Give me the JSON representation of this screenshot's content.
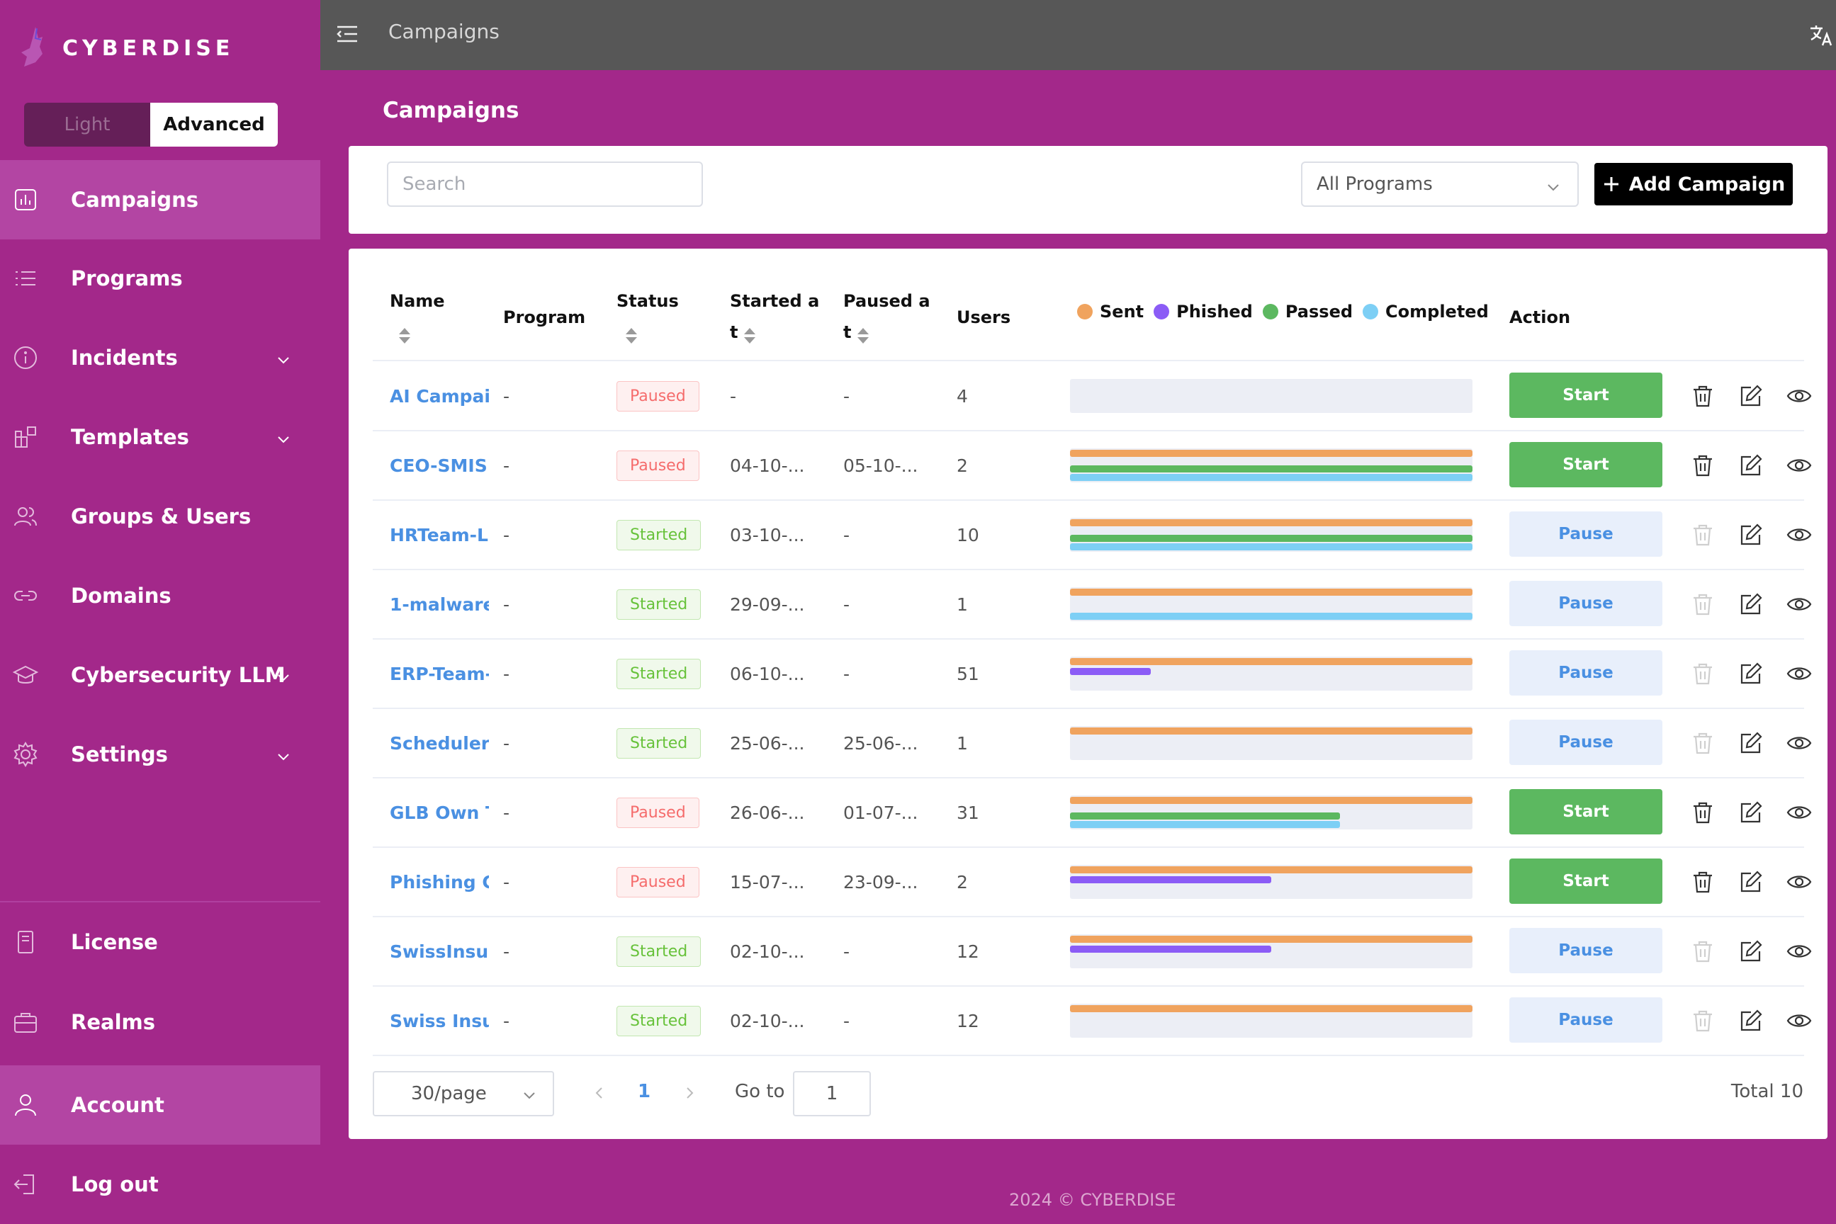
{
  "brand": {
    "name": "CYBERDISE"
  },
  "mode_toggle": {
    "light": "Light",
    "advanced": "Advanced",
    "selected": "Advanced"
  },
  "sidebar": {
    "items": [
      {
        "label": "Campaigns",
        "icon": "chart-icon",
        "active": true
      },
      {
        "label": "Programs",
        "icon": "list-icon"
      },
      {
        "label": "Incidents",
        "icon": "info-icon",
        "expandable": true
      },
      {
        "label": "Templates",
        "icon": "templates-icon",
        "expandable": true
      },
      {
        "label": "Groups & Users",
        "icon": "users-icon"
      },
      {
        "label": "Domains",
        "icon": "link-icon"
      },
      {
        "label": "Cybersecurity LLM",
        "icon": "graduation-cap-icon",
        "expandable": true
      },
      {
        "label": "Settings",
        "icon": "gear-icon",
        "expandable": true
      }
    ],
    "bottom": [
      {
        "label": "License",
        "icon": "document-icon"
      },
      {
        "label": "Realms",
        "icon": "briefcase-icon"
      },
      {
        "label": "Account",
        "icon": "user-icon",
        "active": true
      },
      {
        "label": "Log out",
        "icon": "logout-icon"
      }
    ]
  },
  "topbar": {
    "breadcrumb": "Campaigns"
  },
  "page": {
    "title": "Campaigns"
  },
  "filters": {
    "search_placeholder": "Search",
    "program_select": "All Programs",
    "add_button": "Add Campaign"
  },
  "table": {
    "headers": {
      "name": "Name",
      "program": "Program",
      "status": "Status",
      "started": "Started a t",
      "paused": "Paused a t",
      "users": "Users",
      "action": "Action"
    },
    "started_parts": [
      "Started a",
      "t"
    ],
    "paused_parts": [
      "Paused a",
      "t"
    ],
    "legend": [
      {
        "label": "Sent",
        "color": "#f0a35e"
      },
      {
        "label": "Phished",
        "color": "#8b5cf6"
      },
      {
        "label": "Passed",
        "color": "#5cb860"
      },
      {
        "label": "Completed",
        "color": "#7dcff5"
      }
    ],
    "rows": [
      {
        "name": "AI Campaig",
        "program": "-",
        "status": "Paused",
        "started": "-",
        "paused": "-",
        "users": "4",
        "sent": 0,
        "phished": 0,
        "passed": 0,
        "completed": 0,
        "action": "Start"
      },
      {
        "name": "CEO-SMISH",
        "program": "-",
        "status": "Paused",
        "started": "04-10-...",
        "paused": "05-10-...",
        "users": "2",
        "sent": 1,
        "phished": 0,
        "passed": 1,
        "completed": 1,
        "action": "Start"
      },
      {
        "name": "HRTeam-LI",
        "program": "-",
        "status": "Started",
        "started": "03-10-...",
        "paused": "-",
        "users": "10",
        "sent": 1,
        "phished": 0,
        "passed": 1,
        "completed": 1,
        "action": "Pause"
      },
      {
        "name": "1-malware",
        "program": "-",
        "status": "Started",
        "started": "29-09-...",
        "paused": "-",
        "users": "1",
        "sent": 1,
        "phished": 0,
        "passed": 0,
        "completed": 1,
        "action": "Pause"
      },
      {
        "name": "ERP-Team-",
        "program": "-",
        "status": "Started",
        "started": "06-10-...",
        "paused": "-",
        "users": "51",
        "sent": 1,
        "phished": 0.2,
        "passed": 0,
        "completed": 0,
        "action": "Pause"
      },
      {
        "name": "Scheduler",
        "program": "-",
        "status": "Started",
        "started": "25-06-...",
        "paused": "25-06-...",
        "users": "1",
        "sent": 1,
        "phished": 0,
        "passed": 0,
        "completed": 0,
        "action": "Pause"
      },
      {
        "name": "GLB Own Tr",
        "program": "-",
        "status": "Paused",
        "started": "26-06-...",
        "paused": "01-07-...",
        "users": "31",
        "sent": 1,
        "phished": 0,
        "passed": 0.67,
        "completed": 0.67,
        "action": "Start"
      },
      {
        "name": "Phishing Ca",
        "program": "-",
        "status": "Paused",
        "started": "15-07-...",
        "paused": "23-09-...",
        "users": "2",
        "sent": 1,
        "phished": 0.5,
        "passed": 0,
        "completed": 0,
        "action": "Start"
      },
      {
        "name": "SwissInsur",
        "program": "-",
        "status": "Started",
        "started": "02-10-...",
        "paused": "-",
        "users": "12",
        "sent": 1,
        "phished": 0.5,
        "passed": 0,
        "completed": 0,
        "action": "Pause"
      },
      {
        "name": "Swiss Insu",
        "program": "-",
        "status": "Started",
        "started": "02-10-...",
        "paused": "-",
        "users": "12",
        "sent": 1,
        "phished": 0,
        "passed": 0,
        "completed": 0,
        "action": "Pause"
      }
    ]
  },
  "pagination": {
    "page_size": "30/page",
    "current_page": "1",
    "goto_label": "Go to",
    "goto_value": "1",
    "total": "Total 10"
  },
  "footer": {
    "text": "2024 © CYBERDISE"
  },
  "colors": {
    "brand": "#a3288a",
    "topbar": "#575757",
    "active_nav": "#b345a3",
    "link": "#4a90e2",
    "start": "#5cb860"
  }
}
